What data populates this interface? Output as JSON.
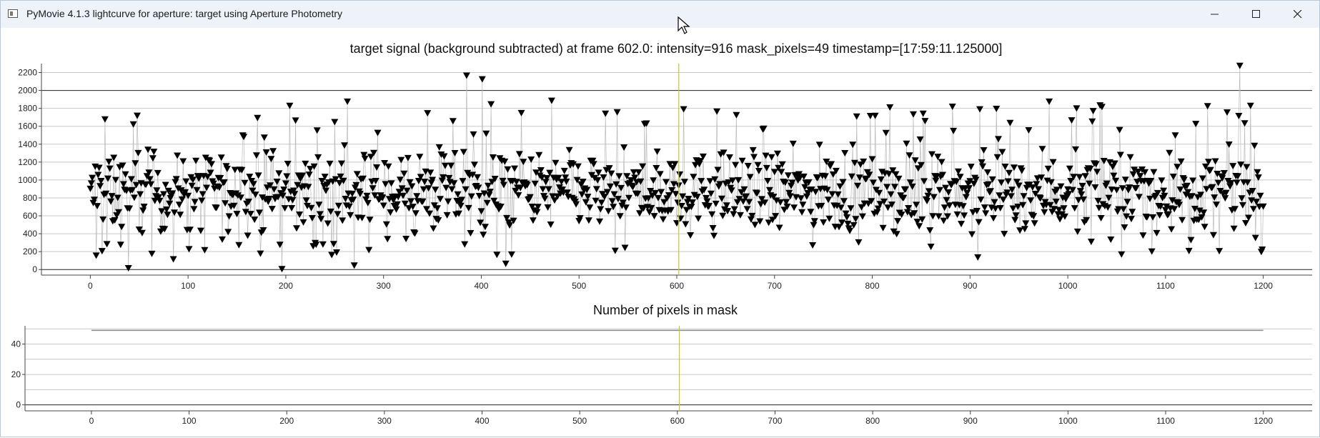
{
  "window": {
    "title": "PyMovie 4.1.3 lightcurve for aperture: target using Aperture Photometry",
    "controls": {
      "minimize_icon": "minimize-icon",
      "maximize_icon": "maximize-icon",
      "close_icon": "close-icon"
    }
  },
  "plots": {
    "signal_title": "target signal (background subtracted) at frame 602.0: intensity=916 mask_pixels=49 timestamp=[17:59:11.125000]",
    "mask_title": "Number of pixels in mask"
  },
  "colors": {
    "cursor_line": "#c8c82a",
    "marker": "#000000",
    "connector": "#bbbbbb"
  },
  "chart_data": [
    {
      "type": "scatter",
      "title": "target signal (background subtracted) at frame 602.0: intensity=916 mask_pixels=49 timestamp=[17:59:11.125000]",
      "x_range": [
        0,
        1200
      ],
      "xlim": [
        -50,
        1250
      ],
      "ylim": [
        -30,
        2300
      ],
      "xticks": [
        "0",
        "100",
        "200",
        "300",
        "400",
        "500",
        "600",
        "700",
        "800",
        "900",
        "1000",
        "1100",
        "1200"
      ],
      "yticks": [
        "0",
        "200",
        "400",
        "600",
        "800",
        "1000",
        "1200",
        "1400",
        "1600",
        "1800",
        "2000",
        "2200"
      ],
      "marker": "triangle-down",
      "grid": true,
      "cursor_x": 602,
      "highlights": [
        {
          "x": 39,
          "y": 10
        },
        {
          "x": 196,
          "y": 0
        },
        {
          "x": 270,
          "y": 40
        },
        {
          "x": 385,
          "y": 2160
        },
        {
          "x": 401,
          "y": 2120
        },
        {
          "x": 1176,
          "y": 2270
        },
        {
          "x": 263,
          "y": 1870
        },
        {
          "x": 472,
          "y": 1880
        },
        {
          "x": 981,
          "y": 1870
        },
        {
          "x": 1143,
          "y": 1820
        },
        {
          "x": 908,
          "y": 130
        },
        {
          "x": 425,
          "y": 60
        },
        {
          "x": 6,
          "y": 150
        },
        {
          "x": 85,
          "y": 110
        },
        {
          "x": 641,
          "y": 1760
        }
      ],
      "typical_range": [
        200,
        1450
      ],
      "typical_center": 850
    },
    {
      "type": "line",
      "title": "Number of pixels in mask",
      "x_range": [
        0,
        1200
      ],
      "xlim": [
        -68,
        1250
      ],
      "ylim": [
        -3,
        52
      ],
      "xticks": [
        "0",
        "100",
        "200",
        "300",
        "400",
        "500",
        "600",
        "700",
        "800",
        "900",
        "1000",
        "1100",
        "1200"
      ],
      "yticks": [
        "0",
        "20",
        "40"
      ],
      "value": 49,
      "grid": true,
      "cursor_x": 602
    }
  ]
}
